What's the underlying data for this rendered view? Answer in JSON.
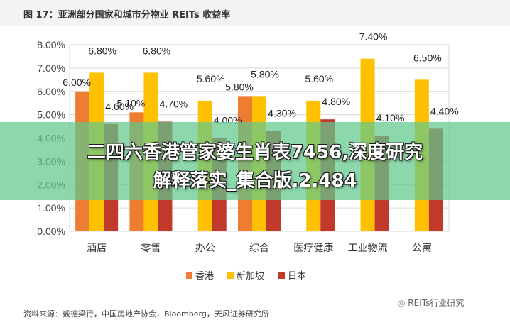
{
  "header": {
    "title": "图 17：亚洲部分国家和城市分物业 REITs 收益率"
  },
  "source": "资料来源：戴德梁行，中国房地产协会，Bloomberg，天风证券研究所",
  "watermark": "REITs行业研究",
  "banner": {
    "line1": "二四六香港管家婆生肖表7456,深度研究",
    "line2": "解释落实_集合版.2.484"
  },
  "chart_data": {
    "type": "bar",
    "title": "图 17：亚洲部分国家和城市分物业 REITs 收益率",
    "categories": [
      "酒店",
      "零售",
      "办公",
      "综合",
      "医疗健康",
      "工业物流",
      "公寓"
    ],
    "series": [
      {
        "name": "香港",
        "color": "#ed7d31",
        "values": [
          6.0,
          5.1,
          null,
          5.8,
          null,
          null,
          null
        ]
      },
      {
        "name": "新加坡",
        "color": "#ffc000",
        "values": [
          6.8,
          6.8,
          5.6,
          5.8,
          5.6,
          7.4,
          6.5
        ]
      },
      {
        "name": "日本",
        "color": "#c0392b",
        "values": [
          4.6,
          4.7,
          4.0,
          4.3,
          4.8,
          4.1,
          4.4
        ]
      }
    ],
    "data_labels": [
      [
        "6.00%",
        "6.80%",
        "4.60%"
      ],
      [
        "5.10%",
        "6.80%",
        "4.70%"
      ],
      [
        null,
        "5.60%",
        "4.00%"
      ],
      [
        "5.80%",
        "5.80%",
        "4.30%"
      ],
      [
        null,
        "5.60%",
        "4.80%"
      ],
      [
        null,
        "7.40%",
        "4.10%"
      ],
      [
        null,
        "6.50%",
        "4.40%"
      ]
    ],
    "ylim": [
      0,
      8
    ],
    "yticks": [
      "0.00%",
      "1.00%",
      "2.00%",
      "3.00%",
      "4.00%",
      "5.00%",
      "6.00%",
      "7.00%",
      "8.00%"
    ],
    "legend_position": "bottom",
    "grid": true
  }
}
